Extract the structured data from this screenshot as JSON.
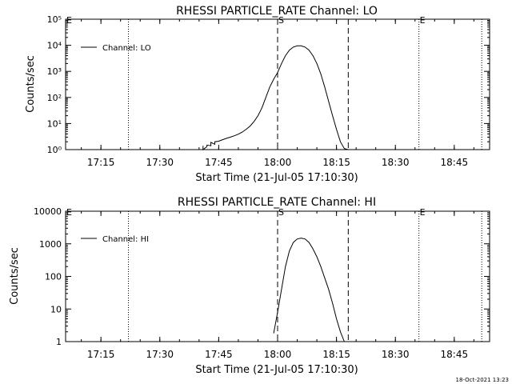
{
  "timestamp": "18-Oct-2021 13:23",
  "chart_data": [
    {
      "type": "line",
      "title": "RHESSI PARTICLE_RATE Channel: LO",
      "xlabel": "Start Time (21-Jul-05 17:10:30)",
      "ylabel": "Counts/sec",
      "yscale": "log",
      "ylim": [
        1,
        100000
      ],
      "xlim": [
        "17:06",
        "18:54"
      ],
      "x_ticks": [
        "17:15",
        "17:30",
        "17:45",
        "18:00",
        "18:15",
        "18:30",
        "18:45"
      ],
      "y_ticks": [
        {
          "value": 1,
          "label": "10⁰"
        },
        {
          "value": 10,
          "label": "10¹"
        },
        {
          "value": 100,
          "label": "10²"
        },
        {
          "value": 1000,
          "label": "10³"
        },
        {
          "value": 10000,
          "label": "10⁴"
        },
        {
          "value": 100000,
          "label": "10⁵"
        }
      ],
      "legend": {
        "placement": "top-left",
        "label": "Channel: LO"
      },
      "markers": [
        {
          "time": "17:06",
          "style": "dotted",
          "label": "E"
        },
        {
          "time": "17:22",
          "style": "dotted",
          "label": ""
        },
        {
          "time": "18:00",
          "style": "dashed",
          "label": "S"
        },
        {
          "time": "18:18",
          "style": "dashed",
          "label": ""
        },
        {
          "time": "18:36",
          "style": "dotted",
          "label": "E"
        },
        {
          "time": "18:52",
          "style": "dotted",
          "label": ""
        }
      ],
      "series": [
        {
          "x": [
            "17:41",
            "17:41",
            "17:42",
            "17:42",
            "17:43",
            "17:43",
            "17:44",
            "17:44",
            "17:45",
            "17:46",
            "17:47",
            "17:48",
            "17:49",
            "17:50",
            "17:51",
            "17:52",
            "17:53",
            "17:54",
            "17:55",
            "17:56",
            "17:57",
            "17:58",
            "17:59",
            "18:00",
            "18:01",
            "18:02",
            "18:03",
            "18:04",
            "18:05",
            "18:06",
            "18:07",
            "18:08",
            "18:09",
            "18:10",
            "18:11",
            "18:12",
            "18:13",
            "18:14",
            "18:15",
            "18:16",
            "18:17",
            "18:18"
          ],
          "values": [
            1.4,
            1.0,
            1.3,
            1.5,
            1.4,
            1.9,
            1.6,
            2.0,
            2.1,
            2.4,
            2.7,
            3.0,
            3.4,
            3.9,
            4.7,
            6.0,
            8.0,
            12,
            20,
            40,
            100,
            250,
            500,
            900,
            2000,
            4000,
            6500,
            8500,
            9500,
            9500,
            8500,
            6500,
            4000,
            2000,
            800,
            250,
            70,
            20,
            6,
            2,
            1.1,
            1.0
          ]
        }
      ]
    },
    {
      "type": "line",
      "title": "RHESSI PARTICLE_RATE Channel: HI",
      "xlabel": "Start Time (21-Jul-05 17:10:30)",
      "ylabel": "Counts/sec",
      "yscale": "log",
      "ylim": [
        1,
        10000
      ],
      "xlim": [
        "17:06",
        "18:54"
      ],
      "x_ticks": [
        "17:15",
        "17:30",
        "17:45",
        "18:00",
        "18:15",
        "18:30",
        "18:45"
      ],
      "y_ticks": [
        {
          "value": 1,
          "label": "1"
        },
        {
          "value": 10,
          "label": "10"
        },
        {
          "value": 100,
          "label": "100"
        },
        {
          "value": 1000,
          "label": "1000"
        },
        {
          "value": 10000,
          "label": "10000"
        }
      ],
      "legend": {
        "placement": "top-left",
        "label": "Channel: HI"
      },
      "markers": [
        {
          "time": "17:06",
          "style": "dotted",
          "label": "E"
        },
        {
          "time": "17:22",
          "style": "dotted",
          "label": ""
        },
        {
          "time": "18:00",
          "style": "dashed",
          "label": "S"
        },
        {
          "time": "18:18",
          "style": "dashed",
          "label": ""
        },
        {
          "time": "18:36",
          "style": "dotted",
          "label": "E"
        },
        {
          "time": "18:52",
          "style": "dotted",
          "label": ""
        }
      ],
      "series": [
        {
          "x": [
            "17:59",
            "18:00",
            "18:01",
            "18:02",
            "18:03",
            "18:04",
            "18:05",
            "18:06",
            "18:07",
            "18:08",
            "18:09",
            "18:10",
            "18:11",
            "18:12",
            "18:13",
            "18:14",
            "18:15",
            "18:16",
            "18:17"
          ],
          "values": [
            1.8,
            8,
            40,
            200,
            600,
            1100,
            1400,
            1500,
            1400,
            1100,
            700,
            400,
            200,
            90,
            40,
            15,
            5,
            2,
            1
          ]
        }
      ]
    }
  ]
}
